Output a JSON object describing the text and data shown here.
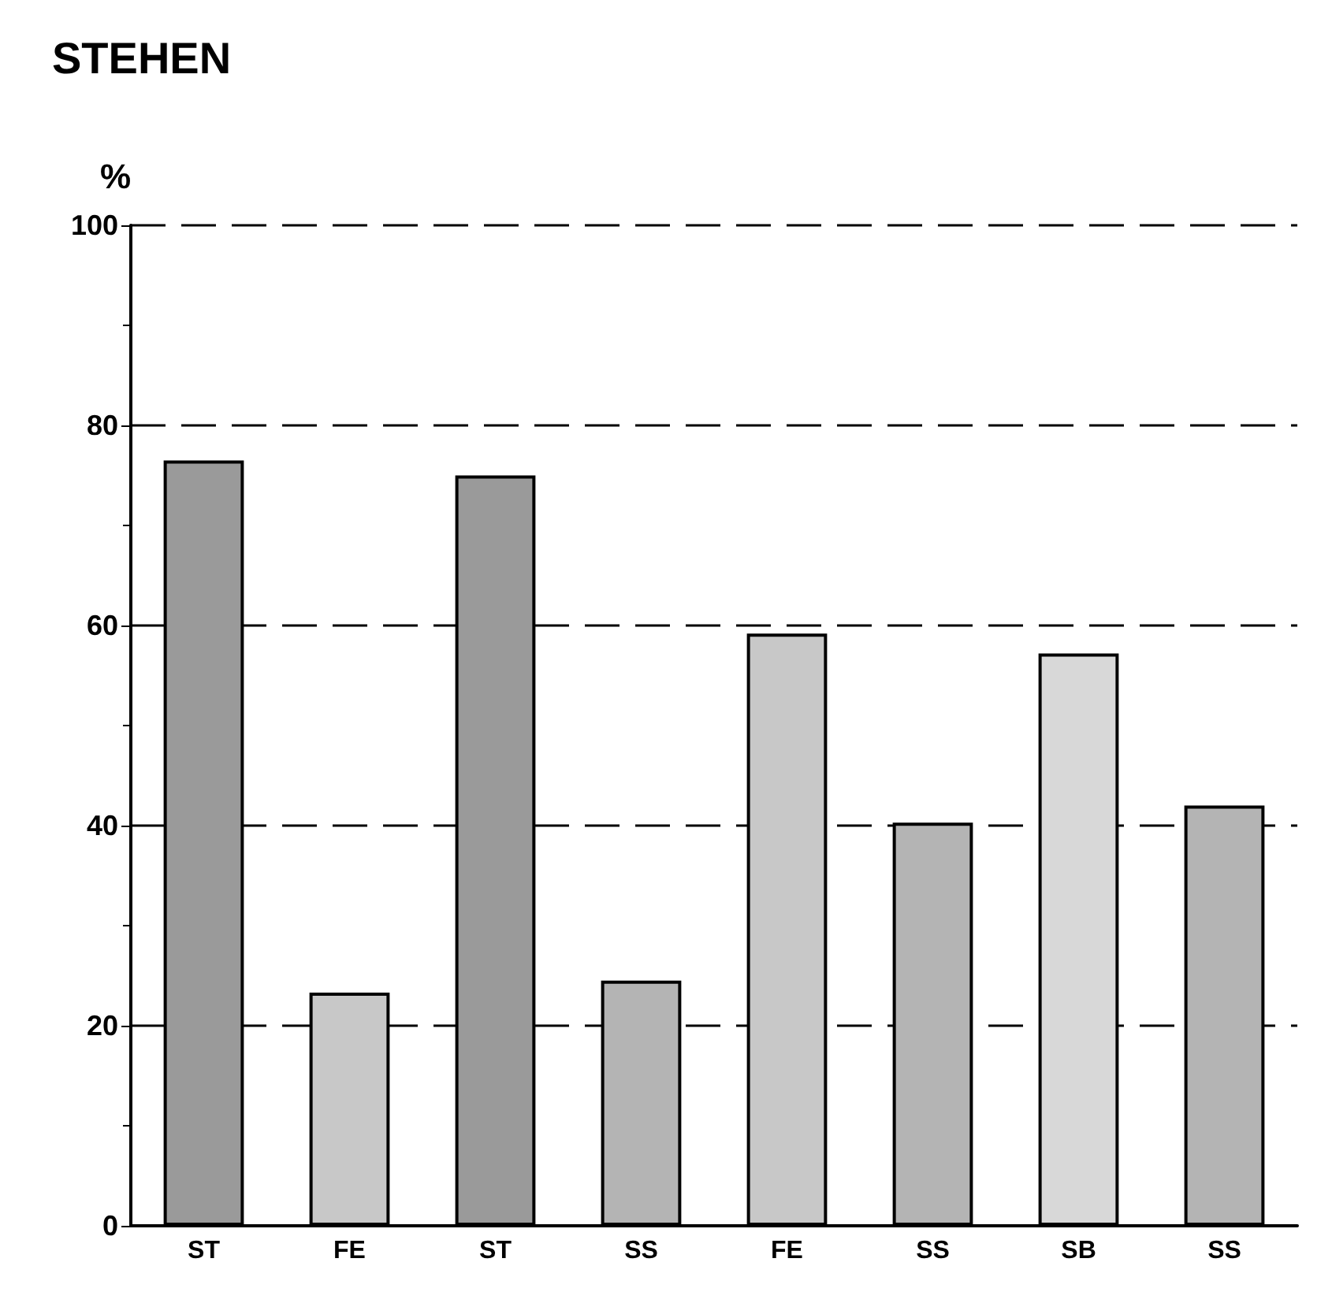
{
  "chart_data": {
    "type": "bar",
    "title": "STEHEN",
    "ylabel": "%",
    "categories": [
      "ST",
      "FE",
      "ST",
      "SS",
      "FE",
      "SS",
      "SB",
      "SS"
    ],
    "values": [
      76.5,
      23.3,
      75,
      24.5,
      59.2,
      40.3,
      57.2,
      42
    ],
    "colors": [
      "#9a9a9a",
      "#c8c8c8",
      "#9a9a9a",
      "#b4b4b4",
      "#c8c8c8",
      "#b4b4b4",
      "#d8d8d8",
      "#b4b4b4"
    ],
    "ylim": [
      0,
      100
    ],
    "yticks": [
      0,
      20,
      40,
      60,
      80,
      100
    ],
    "grid": "y"
  }
}
